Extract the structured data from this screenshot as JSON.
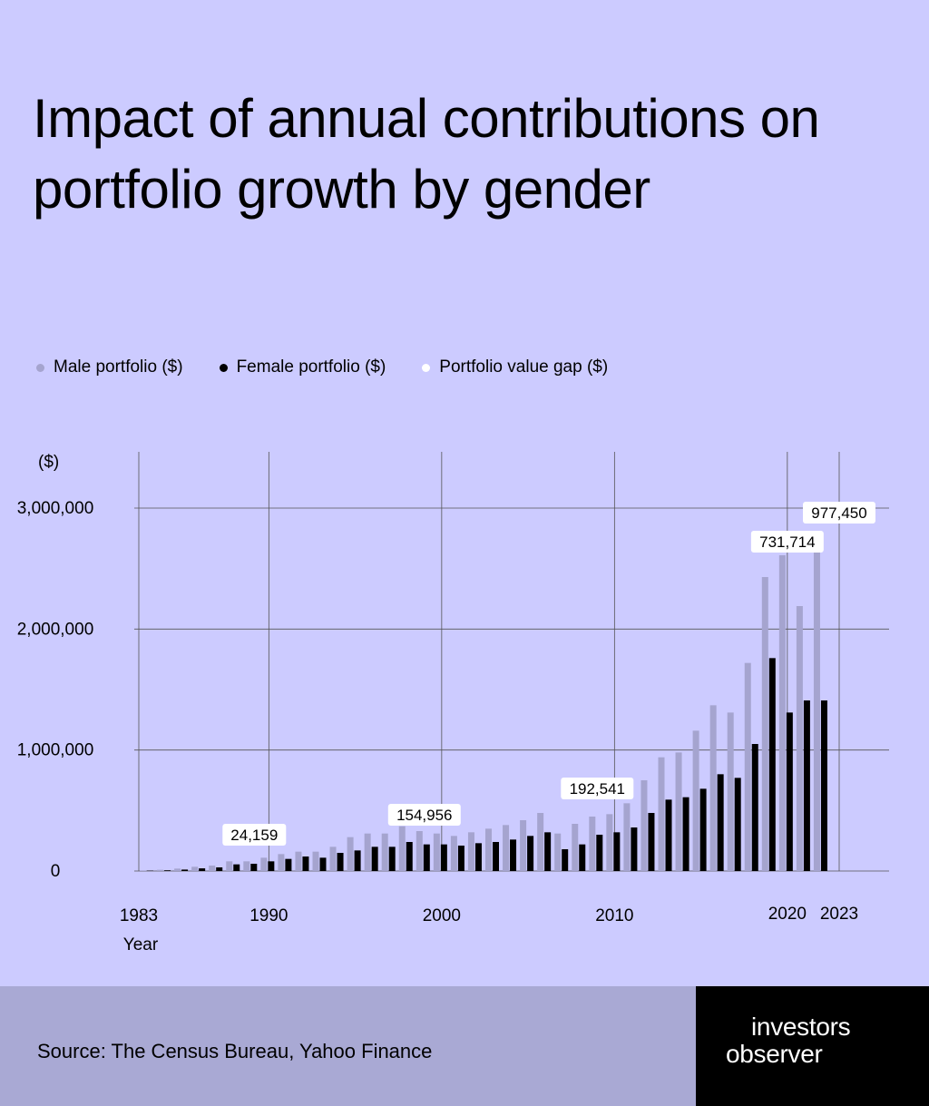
{
  "title": "Impact of annual contributions on portfolio growth by gender",
  "legend": [
    {
      "label": "Male portfolio ($)",
      "color": "#a5a4cf"
    },
    {
      "label": "Female portfolio ($)",
      "color": "#000000"
    },
    {
      "label": "Portfolio value gap ($)",
      "color": "#ffffff"
    }
  ],
  "footer": {
    "source": "Source: The Census Bureau, Yahoo Finance",
    "logo_line1": "investors",
    "logo_line2": "observer"
  },
  "chart_data": {
    "type": "bar",
    "ylabel": "($)",
    "xlabel": "Year",
    "ylim": [
      0,
      3400000
    ],
    "yticks": [
      0,
      1000000,
      2000000,
      3000000
    ],
    "ytick_labels": [
      "0",
      "1,000,000",
      "2,000,000",
      "3,000,000"
    ],
    "xtick_labels": [
      "1983",
      "1990",
      "2000",
      "2010",
      "2020",
      "2023"
    ],
    "grid": true,
    "legend_position": "top-left",
    "categories": [
      1983,
      1984,
      1985,
      1986,
      1987,
      1988,
      1989,
      1990,
      1991,
      1992,
      1993,
      1994,
      1995,
      1996,
      1997,
      1998,
      1999,
      2000,
      2001,
      2002,
      2003,
      2004,
      2005,
      2006,
      2007,
      2008,
      2009,
      2010,
      2011,
      2012,
      2013,
      2014,
      2015,
      2016,
      2017,
      2018,
      2019,
      2020,
      2021,
      2022,
      2023
    ],
    "series": [
      {
        "name": "Male portfolio ($)",
        "color": "#a5a4cf",
        "values": [
          5000,
          10000,
          20000,
          35000,
          45000,
          80000,
          80000,
          110000,
          140000,
          160000,
          160000,
          200000,
          280000,
          310000,
          310000,
          370000,
          330000,
          310000,
          290000,
          320000,
          350000,
          380000,
          420000,
          480000,
          310000,
          390000,
          450000,
          470000,
          560000,
          750000,
          940000,
          980000,
          1160000,
          1370000,
          1310000,
          1720000,
          2430000,
          2610000,
          2190000,
          2810000,
          0
        ]
      },
      {
        "name": "Female portfolio ($)",
        "color": "#000000",
        "values": [
          3000,
          6000,
          12000,
          22000,
          30000,
          55000,
          60000,
          80000,
          100000,
          120000,
          110000,
          150000,
          170000,
          200000,
          200000,
          240000,
          220000,
          220000,
          210000,
          230000,
          240000,
          260000,
          290000,
          320000,
          180000,
          220000,
          300000,
          320000,
          360000,
          480000,
          590000,
          610000,
          680000,
          800000,
          770000,
          1050000,
          1760000,
          1310000,
          1410000,
          1410000,
          0
        ]
      }
    ],
    "annotations": [
      {
        "year": 1989,
        "label": "24,159"
      },
      {
        "year": 1999,
        "label": "154,956"
      },
      {
        "year": 2009,
        "label": "192,541"
      },
      {
        "year": 2020,
        "label": "731,714"
      },
      {
        "year": 2023,
        "label": "977,450"
      }
    ]
  }
}
